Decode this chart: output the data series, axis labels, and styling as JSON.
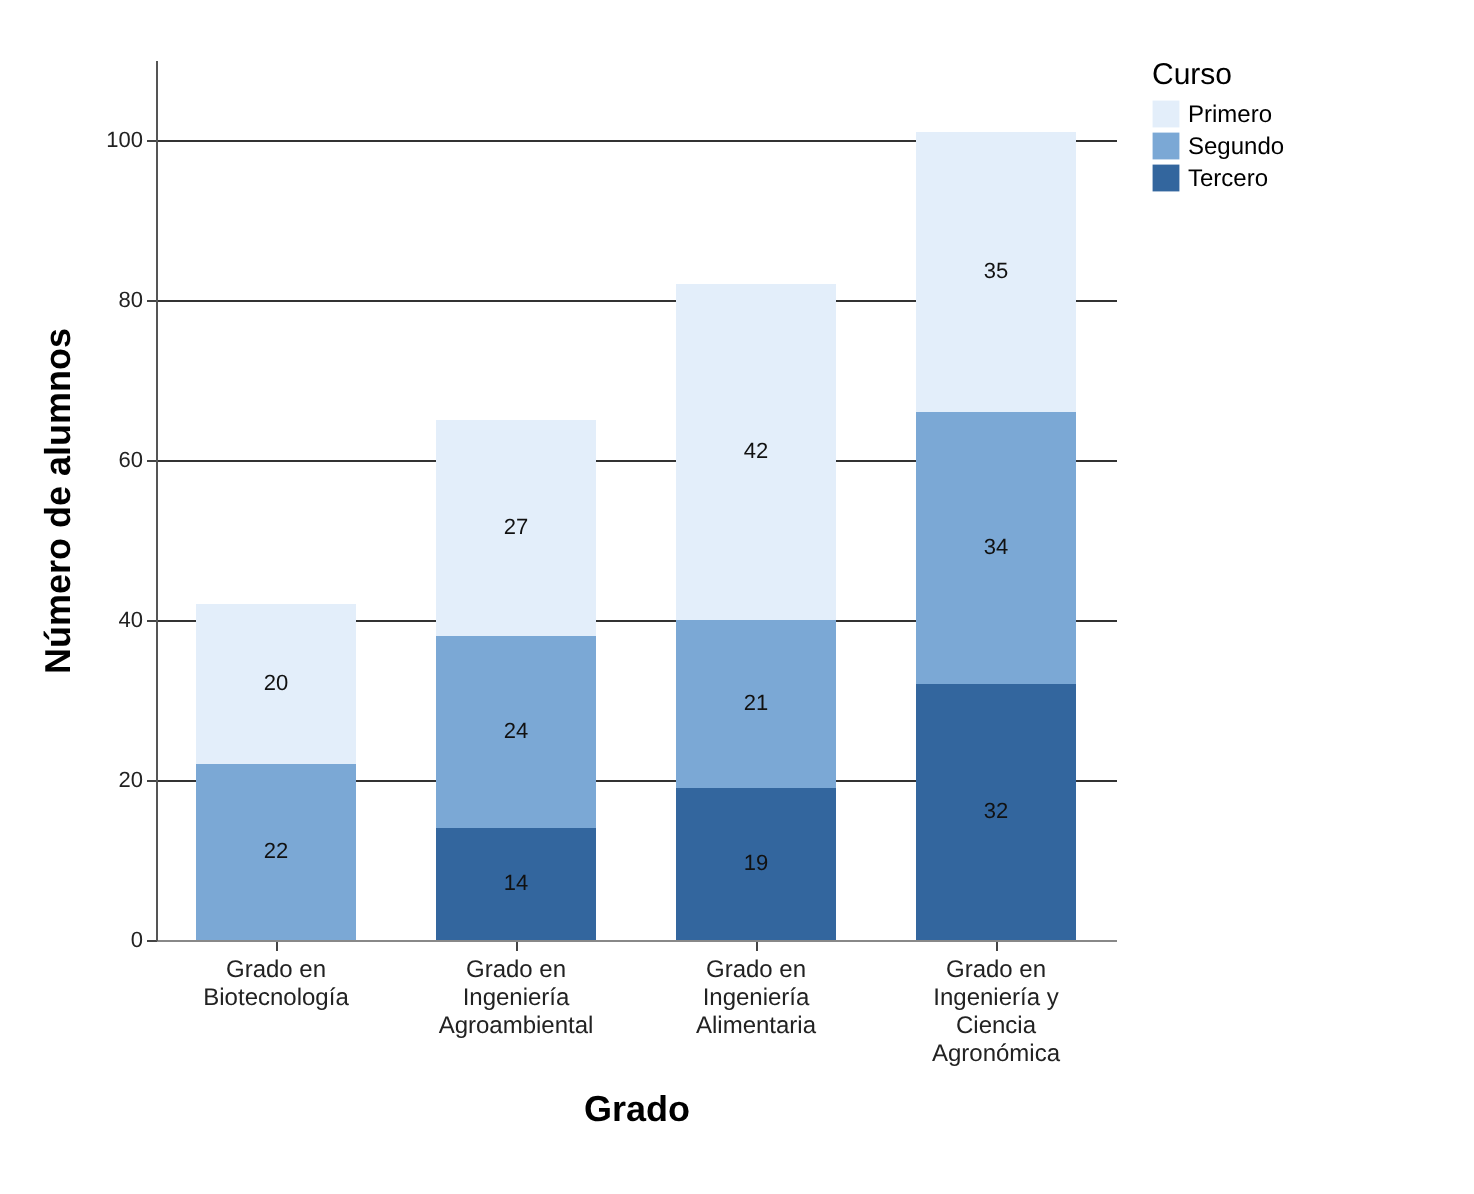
{
  "chart_data": {
    "type": "bar",
    "stacked": true,
    "xlabel": "Grado",
    "ylabel": "Número de alumnos",
    "legend_title": "Curso",
    "legend": "top right",
    "grid": "y",
    "data_labels": true,
    "categories": [
      "Grado en Biotecnología",
      "Grado en Ingeniería Agroambiental",
      "Grado en Ingeniería Alimentaria",
      "Grado en Ingeniería y Ciencia Agronómica"
    ],
    "ylim": [
      0,
      110
    ],
    "yticks": [
      0,
      20,
      40,
      60,
      80,
      100
    ],
    "series": [
      {
        "name": "Tercero",
        "color": "#33669e",
        "values": [
          null,
          14,
          19,
          32
        ]
      },
      {
        "name": "Segundo",
        "color": "#7ba8d5",
        "values": [
          22,
          24,
          21,
          34
        ]
      },
      {
        "name": "Primero",
        "color": "#e3eefa",
        "values": [
          20,
          27,
          42,
          35
        ]
      }
    ]
  }
}
